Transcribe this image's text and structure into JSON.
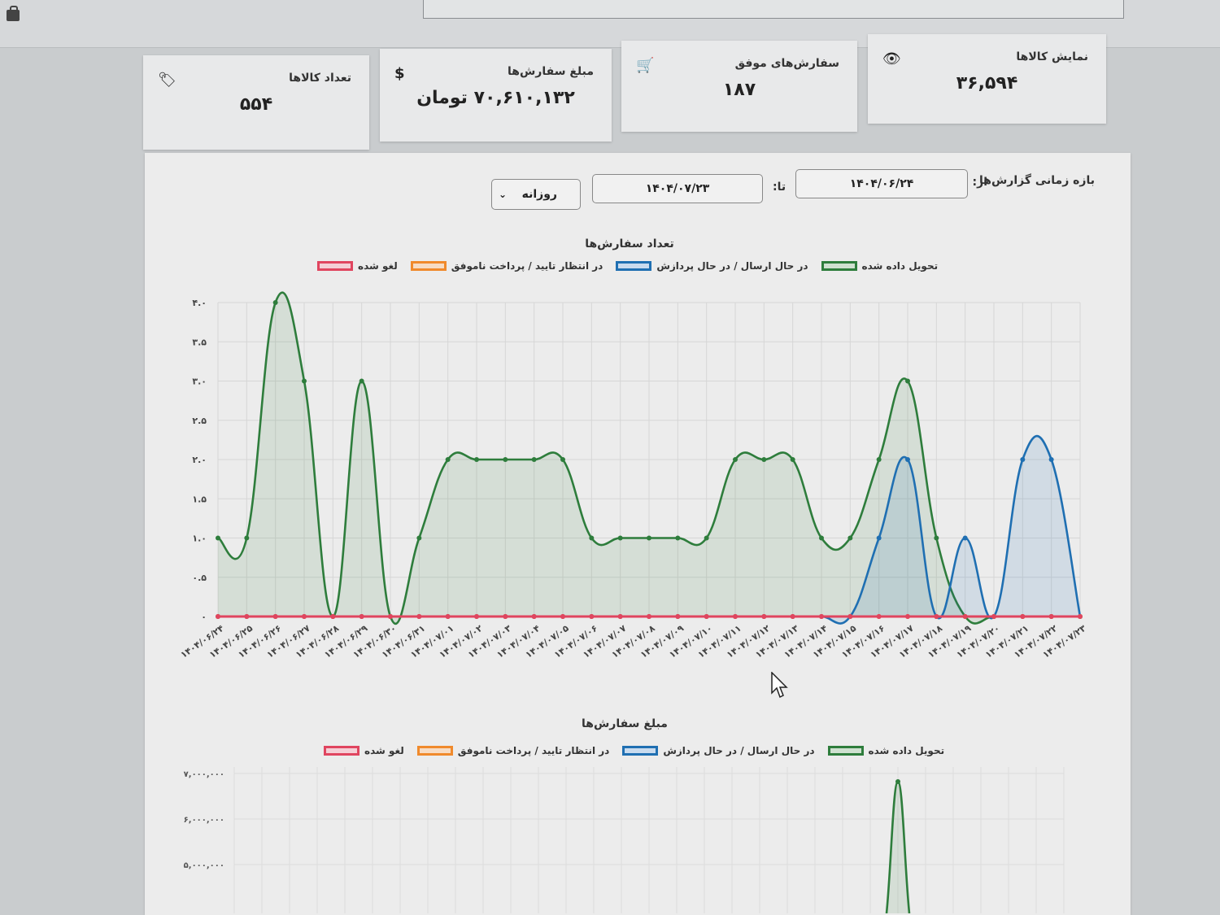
{
  "cards": [
    {
      "label": "تعداد کالاها",
      "value": "۵۵۴",
      "icon": "tag-icon"
    },
    {
      "label": "مبلغ سفارش‌ها",
      "value": "۷۰,۶۱۰,۱۳۲ تومان",
      "icon": "dollar-icon"
    },
    {
      "label": "سفارش‌های موفق",
      "value": "۱۸۷",
      "icon": "cart-icon"
    },
    {
      "label": "نمایش کالاها",
      "value": "۳۶,۵۹۴",
      "icon": "eye-icon"
    }
  ],
  "filters": {
    "range_label": "بازه زمانی گزارش‌ها",
    "from_label": "از:",
    "from_value": "۱۴۰۴/۰۶/۲۴",
    "to_label": "تا:",
    "to_value": "۱۴۰۴/۰۷/۲۳",
    "period_value": "روزانه"
  },
  "colors": {
    "delivered": "#2e7d3c",
    "processing": "#1f6fb2",
    "pending": "#f08a2c",
    "canceled": "#e0455f"
  },
  "legend": [
    "تحویل داده شده",
    "در حال ارسال / در حال پردازش",
    "در انتظار تایید / پرداخت ناموفق",
    "لغو شده"
  ],
  "chart_data": [
    {
      "type": "area",
      "title": "تعداد سفارش‌ها",
      "x": [
        "۱۴۰۴/۰۶/۲۴",
        "۱۴۰۴/۰۶/۲۵",
        "۱۴۰۴/۰۶/۲۶",
        "۱۴۰۴/۰۶/۲۷",
        "۱۴۰۴/۰۶/۲۸",
        "۱۴۰۴/۰۶/۲۹",
        "۱۴۰۴/۰۶/۳۰",
        "۱۴۰۴/۰۶/۳۱",
        "۱۴۰۴/۰۷/۰۱",
        "۱۴۰۴/۰۷/۰۲",
        "۱۴۰۴/۰۷/۰۳",
        "۱۴۰۴/۰۷/۰۴",
        "۱۴۰۴/۰۷/۰۵",
        "۱۴۰۴/۰۷/۰۶",
        "۱۴۰۴/۰۷/۰۷",
        "۱۴۰۴/۰۷/۰۸",
        "۱۴۰۴/۰۷/۰۹",
        "۱۴۰۴/۰۷/۱۰",
        "۱۴۰۴/۰۷/۱۱",
        "۱۴۰۴/۰۷/۱۲",
        "۱۴۰۴/۰۷/۱۳",
        "۱۴۰۴/۰۷/۱۴",
        "۱۴۰۴/۰۷/۱۵",
        "۱۴۰۴/۰۷/۱۶",
        "۱۴۰۴/۰۷/۱۷",
        "۱۴۰۴/۰۷/۱۸",
        "۱۴۰۴/۰۷/۱۹",
        "۱۴۰۴/۰۷/۲۰",
        "۱۴۰۴/۰۷/۲۱",
        "۱۴۰۴/۰۷/۲۲",
        "۱۴۰۴/۰۷/۲۳"
      ],
      "yticks": [
        "۰",
        "۰.۵",
        "۱.۰",
        "۱.۵",
        "۲.۰",
        "۲.۵",
        "۳.۰",
        "۳.۵",
        "۴.۰"
      ],
      "ylim": [
        0,
        4
      ],
      "series": [
        {
          "name": "تحویل داده شده",
          "values": [
            1,
            1,
            4,
            3,
            0,
            3,
            0,
            1,
            2,
            2,
            2,
            2,
            2,
            1,
            1,
            1,
            1,
            1,
            2,
            2,
            2,
            1,
            1,
            2,
            3,
            1,
            0,
            0,
            0,
            0,
            0
          ]
        },
        {
          "name": "در حال ارسال / در حال پردازش",
          "values": [
            0,
            0,
            0,
            0,
            0,
            0,
            0,
            0,
            0,
            0,
            0,
            0,
            0,
            0,
            0,
            0,
            0,
            0,
            0,
            0,
            0,
            0,
            0,
            1,
            2,
            0,
            1,
            0,
            2,
            2,
            0
          ]
        },
        {
          "name": "در انتظار تایید / پرداخت ناموفق",
          "values": [
            0,
            0,
            0,
            0,
            0,
            0,
            0,
            0,
            0,
            0,
            0,
            0,
            0,
            0,
            0,
            0,
            0,
            0,
            0,
            0,
            0,
            0,
            0,
            0,
            0,
            0,
            0,
            0,
            0,
            0,
            0
          ]
        },
        {
          "name": "لغو شده",
          "values": [
            0,
            0,
            0,
            0,
            0,
            0,
            0,
            0,
            0,
            0,
            0,
            0,
            0,
            0,
            0,
            0,
            0,
            0,
            0,
            0,
            0,
            0,
            0,
            0,
            0,
            0,
            0,
            0,
            0,
            0,
            0
          ]
        }
      ]
    },
    {
      "type": "line",
      "title": "مبلغ سفارش‌ها",
      "yticks": [
        "۷,۰۰۰,۰۰۰",
        "۶,۰۰۰,۰۰۰",
        "۵,۰۰۰,۰۰۰"
      ]
    }
  ]
}
